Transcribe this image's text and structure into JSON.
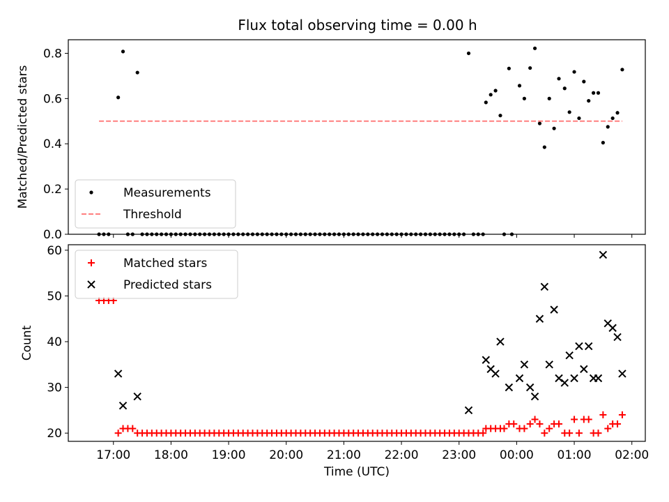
{
  "title": "Flux total observing time = 0.00 h",
  "chart_data": [
    {
      "type": "scatter",
      "ylabel": "Matched/Predicted stars",
      "xlabel": "",
      "xlim": [
        "16:13",
        "26:14"
      ],
      "ylim": [
        0,
        0.86
      ],
      "yticks": [
        "0.0",
        "0.2",
        "0.4",
        "0.6",
        "0.8"
      ],
      "legend_position": "lower-left",
      "series": [
        {
          "name": "Measurements",
          "marker": "dot",
          "color": "#000000",
          "points": [
            [
              "16:45",
              0
            ],
            [
              "16:50",
              0
            ],
            [
              "16:55",
              0
            ],
            [
              "17:05",
              0.605
            ],
            [
              "17:10",
              0.808
            ],
            [
              "17:15",
              0
            ],
            [
              "17:20",
              0
            ],
            [
              "17:25",
              0.715
            ],
            [
              "17:30",
              0
            ],
            [
              "17:35",
              0
            ],
            [
              "17:40",
              0
            ],
            [
              "17:45",
              0
            ],
            [
              "17:50",
              0
            ],
            [
              "17:55",
              0
            ],
            [
              "18:00",
              0
            ],
            [
              "18:05",
              0
            ],
            [
              "18:10",
              0
            ],
            [
              "18:15",
              0
            ],
            [
              "18:20",
              0
            ],
            [
              "18:25",
              0
            ],
            [
              "18:30",
              0
            ],
            [
              "18:35",
              0
            ],
            [
              "18:40",
              0
            ],
            [
              "18:45",
              0
            ],
            [
              "18:50",
              0
            ],
            [
              "18:55",
              0
            ],
            [
              "19:00",
              0
            ],
            [
              "19:05",
              0
            ],
            [
              "19:10",
              0
            ],
            [
              "19:15",
              0
            ],
            [
              "19:20",
              0
            ],
            [
              "19:25",
              0
            ],
            [
              "19:30",
              0
            ],
            [
              "19:35",
              0
            ],
            [
              "19:40",
              0
            ],
            [
              "19:45",
              0
            ],
            [
              "19:50",
              0
            ],
            [
              "19:55",
              0
            ],
            [
              "20:00",
              0
            ],
            [
              "20:05",
              0
            ],
            [
              "20:10",
              0
            ],
            [
              "20:15",
              0
            ],
            [
              "20:20",
              0
            ],
            [
              "20:25",
              0
            ],
            [
              "20:30",
              0
            ],
            [
              "20:35",
              0
            ],
            [
              "20:40",
              0
            ],
            [
              "20:45",
              0
            ],
            [
              "20:50",
              0
            ],
            [
              "20:55",
              0
            ],
            [
              "21:00",
              0
            ],
            [
              "21:05",
              0
            ],
            [
              "21:10",
              0
            ],
            [
              "21:15",
              0
            ],
            [
              "21:20",
              0
            ],
            [
              "21:25",
              0
            ],
            [
              "21:30",
              0
            ],
            [
              "21:35",
              0
            ],
            [
              "21:40",
              0
            ],
            [
              "21:45",
              0
            ],
            [
              "21:50",
              0
            ],
            [
              "21:55",
              0
            ],
            [
              "22:00",
              0
            ],
            [
              "22:05",
              0
            ],
            [
              "22:10",
              0
            ],
            [
              "22:15",
              0
            ],
            [
              "22:20",
              0
            ],
            [
              "22:25",
              0
            ],
            [
              "22:30",
              0
            ],
            [
              "22:35",
              0
            ],
            [
              "22:40",
              0
            ],
            [
              "22:45",
              0
            ],
            [
              "22:50",
              0
            ],
            [
              "22:55",
              0
            ],
            [
              "23:00",
              0
            ],
            [
              "23:05",
              0
            ],
            [
              "23:10",
              0.8
            ],
            [
              "23:15",
              0
            ],
            [
              "23:20",
              0
            ],
            [
              "23:25",
              0
            ],
            [
              "23:28",
              0.583
            ],
            [
              "23:33",
              0.617
            ],
            [
              "23:38",
              0.635
            ],
            [
              "23:43",
              0.525
            ],
            [
              "23:47",
              0
            ],
            [
              "23:52",
              0.733
            ],
            [
              "23:55",
              0
            ],
            [
              "24:03",
              0.657
            ],
            [
              "24:08",
              0.6
            ],
            [
              "24:14",
              0.735
            ],
            [
              "24:19",
              0.822
            ],
            [
              "24:24",
              0.49
            ],
            [
              "24:29",
              0.385
            ],
            [
              "24:34",
              0.6
            ],
            [
              "24:39",
              0.468
            ],
            [
              "24:44",
              0.688
            ],
            [
              "24:50",
              0.645
            ],
            [
              "24:55",
              0.54
            ],
            [
              "25:00",
              0.718
            ],
            [
              "25:05",
              0.513
            ],
            [
              "25:10",
              0.675
            ],
            [
              "25:15",
              0.59
            ],
            [
              "25:20",
              0.625
            ],
            [
              "25:25",
              0.625
            ],
            [
              "25:30",
              0.405
            ],
            [
              "25:35",
              0.475
            ],
            [
              "25:40",
              0.513
            ],
            [
              "25:45",
              0.537
            ],
            [
              "25:50",
              0.728
            ]
          ]
        },
        {
          "name": "Threshold",
          "marker": "dashed-line",
          "color": "#ff7f7f",
          "points": [
            [
              "16:45",
              0.5
            ],
            [
              "25:50",
              0.5
            ]
          ]
        }
      ]
    },
    {
      "type": "scatter",
      "ylabel": "Count",
      "xlabel": "Time (UTC)",
      "xlim": [
        "16:13",
        "26:14"
      ],
      "ylim": [
        18.2,
        61.2
      ],
      "yticks": [
        "20",
        "30",
        "40",
        "50",
        "60"
      ],
      "xticks": [
        "17:00",
        "18:00",
        "19:00",
        "20:00",
        "21:00",
        "22:00",
        "23:00",
        "00:00",
        "01:00",
        "02:00"
      ],
      "legend_position": "upper-left",
      "series": [
        {
          "name": "Matched stars",
          "marker": "plus",
          "color": "#ff0000",
          "points": [
            [
              "16:45",
              49
            ],
            [
              "16:50",
              49
            ],
            [
              "16:55",
              49
            ],
            [
              "17:00",
              49
            ],
            [
              "17:05",
              20
            ],
            [
              "17:10",
              21
            ],
            [
              "17:15",
              21
            ],
            [
              "17:20",
              21
            ],
            [
              "17:25",
              20
            ],
            [
              "17:30",
              20
            ],
            [
              "17:35",
              20
            ],
            [
              "17:40",
              20
            ],
            [
              "17:45",
              20
            ],
            [
              "17:50",
              20
            ],
            [
              "17:55",
              20
            ],
            [
              "18:00",
              20
            ],
            [
              "18:05",
              20
            ],
            [
              "18:10",
              20
            ],
            [
              "18:15",
              20
            ],
            [
              "18:20",
              20
            ],
            [
              "18:25",
              20
            ],
            [
              "18:30",
              20
            ],
            [
              "18:35",
              20
            ],
            [
              "18:40",
              20
            ],
            [
              "18:45",
              20
            ],
            [
              "18:50",
              20
            ],
            [
              "18:55",
              20
            ],
            [
              "19:00",
              20
            ],
            [
              "19:05",
              20
            ],
            [
              "19:10",
              20
            ],
            [
              "19:15",
              20
            ],
            [
              "19:20",
              20
            ],
            [
              "19:25",
              20
            ],
            [
              "19:30",
              20
            ],
            [
              "19:35",
              20
            ],
            [
              "19:40",
              20
            ],
            [
              "19:45",
              20
            ],
            [
              "19:50",
              20
            ],
            [
              "19:55",
              20
            ],
            [
              "20:00",
              20
            ],
            [
              "20:05",
              20
            ],
            [
              "20:10",
              20
            ],
            [
              "20:15",
              20
            ],
            [
              "20:20",
              20
            ],
            [
              "20:25",
              20
            ],
            [
              "20:30",
              20
            ],
            [
              "20:35",
              20
            ],
            [
              "20:40",
              20
            ],
            [
              "20:45",
              20
            ],
            [
              "20:50",
              20
            ],
            [
              "20:55",
              20
            ],
            [
              "21:00",
              20
            ],
            [
              "21:05",
              20
            ],
            [
              "21:10",
              20
            ],
            [
              "21:15",
              20
            ],
            [
              "21:20",
              20
            ],
            [
              "21:25",
              20
            ],
            [
              "21:30",
              20
            ],
            [
              "21:35",
              20
            ],
            [
              "21:40",
              20
            ],
            [
              "21:45",
              20
            ],
            [
              "21:50",
              20
            ],
            [
              "21:55",
              20
            ],
            [
              "22:00",
              20
            ],
            [
              "22:05",
              20
            ],
            [
              "22:10",
              20
            ],
            [
              "22:15",
              20
            ],
            [
              "22:20",
              20
            ],
            [
              "22:25",
              20
            ],
            [
              "22:30",
              20
            ],
            [
              "22:35",
              20
            ],
            [
              "22:40",
              20
            ],
            [
              "22:45",
              20
            ],
            [
              "22:50",
              20
            ],
            [
              "22:55",
              20
            ],
            [
              "23:00",
              20
            ],
            [
              "23:05",
              20
            ],
            [
              "23:10",
              20
            ],
            [
              "23:15",
              20
            ],
            [
              "23:20",
              20
            ],
            [
              "23:25",
              20
            ],
            [
              "23:28",
              21
            ],
            [
              "23:33",
              21
            ],
            [
              "23:38",
              21
            ],
            [
              "23:43",
              21
            ],
            [
              "23:47",
              21
            ],
            [
              "23:52",
              22
            ],
            [
              "23:57",
              22
            ],
            [
              "24:03",
              21
            ],
            [
              "24:08",
              21
            ],
            [
              "24:14",
              22
            ],
            [
              "24:19",
              23
            ],
            [
              "24:24",
              22
            ],
            [
              "24:29",
              20
            ],
            [
              "24:34",
              21
            ],
            [
              "24:39",
              22
            ],
            [
              "24:44",
              22
            ],
            [
              "24:50",
              20
            ],
            [
              "24:55",
              20
            ],
            [
              "25:00",
              23
            ],
            [
              "25:05",
              20
            ],
            [
              "25:10",
              23
            ],
            [
              "25:15",
              23
            ],
            [
              "25:20",
              20
            ],
            [
              "25:25",
              20
            ],
            [
              "25:30",
              24
            ],
            [
              "25:35",
              21
            ],
            [
              "25:40",
              22
            ],
            [
              "25:45",
              22
            ],
            [
              "25:50",
              24
            ]
          ]
        },
        {
          "name": "Predicted stars",
          "marker": "x",
          "color": "#000000",
          "points": [
            [
              "17:05",
              33
            ],
            [
              "17:10",
              26
            ],
            [
              "17:25",
              28
            ],
            [
              "23:10",
              25
            ],
            [
              "23:28",
              36
            ],
            [
              "23:33",
              34
            ],
            [
              "23:38",
              33
            ],
            [
              "23:43",
              40
            ],
            [
              "23:52",
              30
            ],
            [
              "24:03",
              32
            ],
            [
              "24:08",
              35
            ],
            [
              "24:14",
              30
            ],
            [
              "24:19",
              28
            ],
            [
              "24:24",
              45
            ],
            [
              "24:29",
              52
            ],
            [
              "24:34",
              35
            ],
            [
              "24:39",
              47
            ],
            [
              "24:44",
              32
            ],
            [
              "24:50",
              31
            ],
            [
              "24:55",
              37
            ],
            [
              "25:00",
              32
            ],
            [
              "25:05",
              39
            ],
            [
              "25:10",
              34
            ],
            [
              "25:15",
              39
            ],
            [
              "25:20",
              32
            ],
            [
              "25:25",
              32
            ],
            [
              "25:30",
              59
            ],
            [
              "25:35",
              44
            ],
            [
              "25:40",
              43
            ],
            [
              "25:45",
              41
            ],
            [
              "25:50",
              33
            ]
          ]
        }
      ]
    }
  ]
}
